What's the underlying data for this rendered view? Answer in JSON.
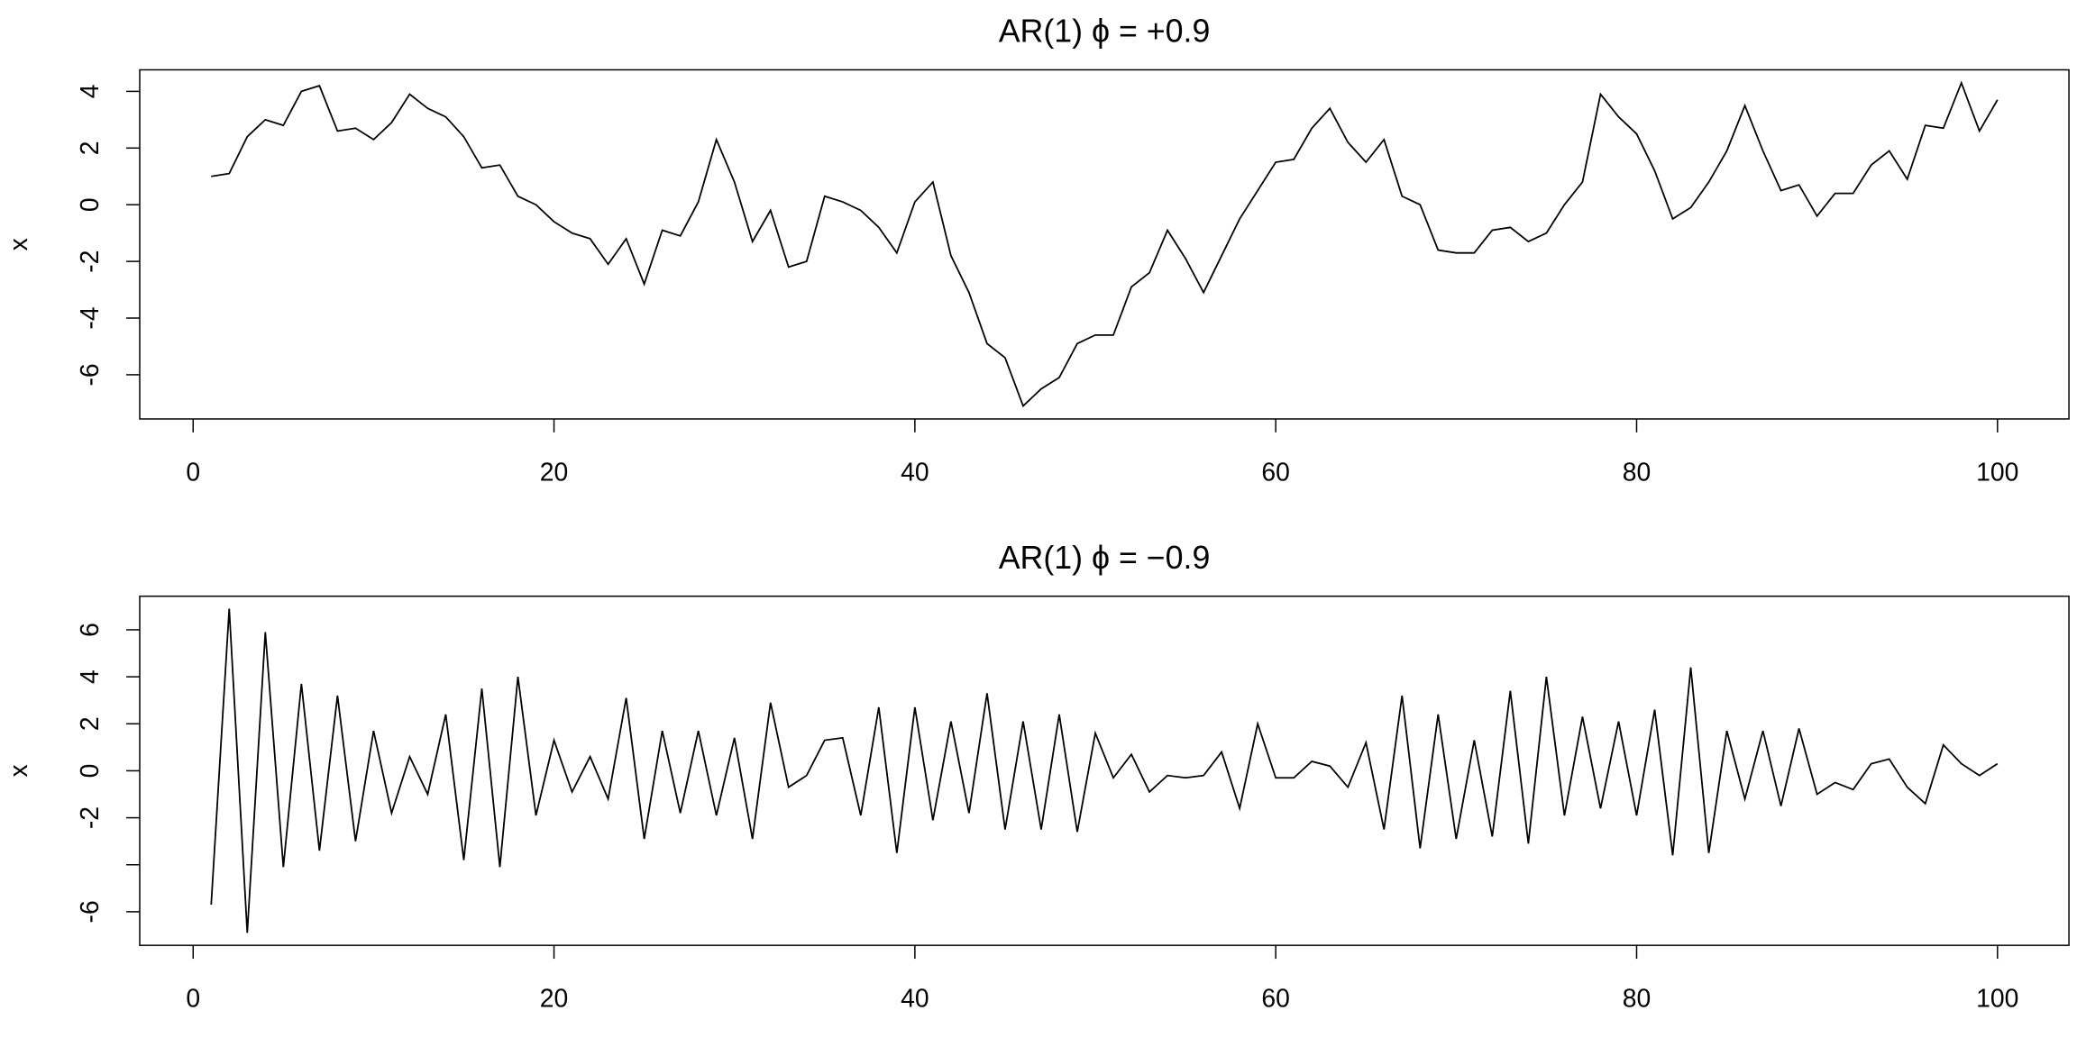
{
  "chart_data": [
    {
      "type": "line",
      "title": "AR(1)   ϕ = +0.9",
      "y_label": "x",
      "x": [
        1,
        2,
        3,
        4,
        5,
        6,
        7,
        8,
        9,
        10,
        11,
        12,
        13,
        14,
        15,
        16,
        17,
        18,
        19,
        20,
        21,
        22,
        23,
        24,
        25,
        26,
        27,
        28,
        29,
        30,
        31,
        32,
        33,
        34,
        35,
        36,
        37,
        38,
        39,
        40,
        41,
        42,
        43,
        44,
        45,
        46,
        47,
        48,
        49,
        50,
        51,
        52,
        53,
        54,
        55,
        56,
        57,
        58,
        59,
        60,
        61,
        62,
        63,
        64,
        65,
        66,
        67,
        68,
        69,
        70,
        71,
        72,
        73,
        74,
        75,
        76,
        77,
        78,
        79,
        80,
        81,
        82,
        83,
        84,
        85,
        86,
        87,
        88,
        89,
        90,
        91,
        92,
        93,
        94,
        95,
        96,
        97,
        98,
        99,
        100
      ],
      "values": [
        1.0,
        1.1,
        2.4,
        3.0,
        2.8,
        4.0,
        4.2,
        2.6,
        2.7,
        2.3,
        2.9,
        3.9,
        3.4,
        3.1,
        2.4,
        1.3,
        1.4,
        0.3,
        0.0,
        -0.6,
        -1.0,
        -1.2,
        -2.1,
        -1.2,
        -2.8,
        -0.9,
        -1.1,
        0.1,
        2.3,
        0.8,
        -1.3,
        -0.2,
        -2.2,
        -2.0,
        0.3,
        0.1,
        -0.2,
        -0.8,
        -1.7,
        0.1,
        0.8,
        -1.8,
        -3.1,
        -4.9,
        -5.4,
        -7.1,
        -6.5,
        -6.1,
        -4.9,
        -4.6,
        -4.6,
        -2.9,
        -2.4,
        -0.9,
        -1.9,
        -3.1,
        -1.8,
        -0.5,
        0.5,
        1.5,
        1.6,
        2.7,
        3.4,
        2.2,
        1.5,
        2.3,
        0.3,
        0.0,
        -1.6,
        -1.7,
        -1.7,
        -0.9,
        -0.8,
        -1.3,
        -1.0,
        0.0,
        0.8,
        3.9,
        3.1,
        2.5,
        1.2,
        -0.5,
        -0.1,
        0.8,
        1.9,
        3.5,
        1.9,
        0.5,
        0.7,
        -0.4,
        0.4,
        0.4,
        1.4,
        1.9,
        0.9,
        2.8,
        2.7,
        4.3,
        2.6,
        3.7
      ],
      "color": "#000000",
      "xlim": [
        -2.96,
        103.96
      ],
      "xticks": [
        0,
        20,
        40,
        60,
        80,
        100
      ],
      "ylim": [
        -7.56,
        4.76
      ],
      "yticks": [
        -6,
        -4,
        -2,
        0,
        2,
        4
      ]
    },
    {
      "type": "line",
      "title": "AR(1)   ϕ = −0.9",
      "y_label": "x",
      "x": [
        1,
        2,
        3,
        4,
        5,
        6,
        7,
        8,
        9,
        10,
        11,
        12,
        13,
        14,
        15,
        16,
        17,
        18,
        19,
        20,
        21,
        22,
        23,
        24,
        25,
        26,
        27,
        28,
        29,
        30,
        31,
        32,
        33,
        34,
        35,
        36,
        37,
        38,
        39,
        40,
        41,
        42,
        43,
        44,
        45,
        46,
        47,
        48,
        49,
        50,
        51,
        52,
        53,
        54,
        55,
        56,
        57,
        58,
        59,
        60,
        61,
        62,
        63,
        64,
        65,
        66,
        67,
        68,
        69,
        70,
        71,
        72,
        73,
        74,
        75,
        76,
        77,
        78,
        79,
        80,
        81,
        82,
        83,
        84,
        85,
        86,
        87,
        88,
        89,
        90,
        91,
        92,
        93,
        94,
        95,
        96,
        97,
        98,
        99,
        100
      ],
      "values": [
        -5.7,
        6.9,
        -6.9,
        5.9,
        -4.1,
        3.7,
        -3.4,
        3.2,
        -3.0,
        1.7,
        -1.8,
        0.6,
        -1.0,
        2.4,
        -3.8,
        3.5,
        -4.1,
        4.0,
        -1.9,
        1.3,
        -0.9,
        0.6,
        -1.2,
        3.1,
        -2.9,
        1.7,
        -1.8,
        1.7,
        -1.9,
        1.4,
        -2.9,
        2.9,
        -0.7,
        -0.2,
        1.3,
        1.4,
        -1.9,
        2.7,
        -3.5,
        2.7,
        -2.1,
        2.1,
        -1.8,
        3.3,
        -2.5,
        2.1,
        -2.5,
        2.4,
        -2.6,
        1.6,
        -0.3,
        0.7,
        -0.9,
        -0.2,
        -0.3,
        -0.2,
        0.8,
        -1.6,
        2.0,
        -0.3,
        -0.3,
        0.4,
        0.2,
        -0.7,
        1.2,
        -2.5,
        3.2,
        -3.3,
        2.4,
        -2.9,
        1.3,
        -2.8,
        3.4,
        -3.1,
        4.0,
        -1.9,
        2.3,
        -1.6,
        2.1,
        -1.9,
        2.6,
        -3.6,
        4.4,
        -3.5,
        1.7,
        -1.2,
        1.7,
        -1.5,
        1.8,
        -1.0,
        -0.5,
        -0.8,
        0.3,
        0.5,
        -0.7,
        -1.4,
        1.1,
        0.3,
        -0.2,
        0.3
      ],
      "color": "#000000",
      "xlim": [
        -2.96,
        103.96
      ],
      "xticks": [
        0,
        20,
        40,
        60,
        80,
        100
      ],
      "ylim": [
        -7.43,
        7.43
      ],
      "yticks": [
        -6,
        {
          "value": -4,
          "label": null
        },
        -2,
        0,
        2,
        4,
        6
      ]
    }
  ]
}
